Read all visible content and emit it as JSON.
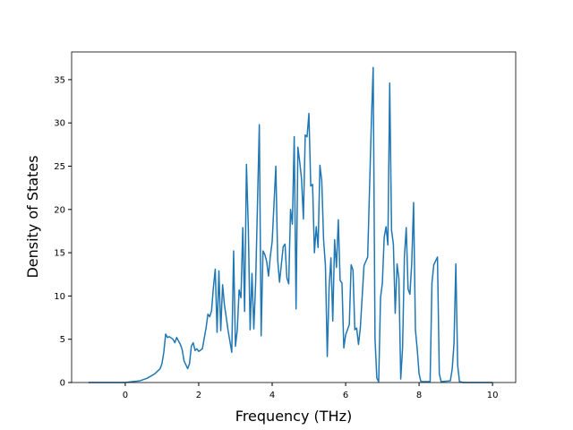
{
  "chart_data": {
    "type": "line",
    "x_label": "Frequency (THz)",
    "y_label": "Density of States",
    "x": [
      -1,
      0,
      0.2,
      0.4,
      0.6,
      0.8,
      0.95,
      1.0,
      1.05,
      1.1,
      1.15,
      1.2,
      1.3,
      1.35,
      1.4,
      1.5,
      1.55,
      1.6,
      1.7,
      1.75,
      1.8,
      1.85,
      1.9,
      1.95,
      2.0,
      2.1,
      2.2,
      2.25,
      2.3,
      2.35,
      2.4,
      2.45,
      2.5,
      2.55,
      2.6,
      2.65,
      2.7,
      2.8,
      2.9,
      2.95,
      3.0,
      3.05,
      3.1,
      3.15,
      3.2,
      3.25,
      3.3,
      3.35,
      3.4,
      3.45,
      3.5,
      3.55,
      3.65,
      3.7,
      3.75,
      3.8,
      3.85,
      3.9,
      3.95,
      4.0,
      4.1,
      4.15,
      4.2,
      4.3,
      4.35,
      4.4,
      4.45,
      4.5,
      4.55,
      4.6,
      4.65,
      4.7,
      4.75,
      4.8,
      4.85,
      4.9,
      4.95,
      5.0,
      5.05,
      5.1,
      5.15,
      5.2,
      5.25,
      5.3,
      5.35,
      5.4,
      5.45,
      5.5,
      5.55,
      5.6,
      5.65,
      5.7,
      5.75,
      5.8,
      5.85,
      5.9,
      5.95,
      6.0,
      6.1,
      6.15,
      6.2,
      6.25,
      6.3,
      6.35,
      6.4,
      6.5,
      6.6,
      6.7,
      6.75,
      6.8,
      6.85,
      6.9,
      6.95,
      7.0,
      7.05,
      7.1,
      7.15,
      7.2,
      7.25,
      7.3,
      7.35,
      7.4,
      7.45,
      7.5,
      7.55,
      7.6,
      7.65,
      7.7,
      7.75,
      7.8,
      7.85,
      7.9,
      7.95,
      8.0,
      8.05,
      8.3,
      8.35,
      8.4,
      8.5,
      8.55,
      8.6,
      8.85,
      8.9,
      8.95,
      9.0,
      9.05,
      9.1,
      9.2,
      10.0
    ],
    "series": [
      {
        "name": "DOS",
        "color": "#1f77b4",
        "values": [
          0,
          0,
          0.1,
          0.2,
          0.5,
          1.0,
          1.6,
          2.2,
          3.5,
          5.6,
          5.2,
          5.3,
          5.0,
          4.6,
          5.2,
          4.4,
          3.8,
          2.5,
          1.6,
          2.2,
          4.2,
          4.6,
          3.7,
          3.9,
          3.6,
          3.9,
          6.3,
          7.9,
          7.6,
          8.3,
          11.0,
          13.1,
          5.8,
          12.9,
          6.0,
          11.3,
          9.0,
          6.0,
          3.5,
          15.2,
          4.2,
          6.1,
          10.7,
          9.8,
          17.9,
          8.2,
          25.2,
          18.0,
          6.1,
          12.6,
          6.2,
          11.5,
          29.8,
          5.4,
          15.2,
          14.8,
          14.0,
          12.3,
          14.6,
          16.3,
          25.0,
          14.2,
          11.6,
          15.7,
          16.0,
          12.1,
          11.4,
          20.0,
          18.3,
          28.4,
          8.5,
          27.2,
          25.5,
          23.5,
          18.9,
          28.6,
          28.4,
          31.1,
          22.7,
          22.9,
          15.0,
          18.0,
          15.6,
          25.1,
          23.3,
          16.5,
          13.5,
          3.0,
          11.0,
          14.4,
          7.1,
          16.5,
          13.3,
          18.8,
          11.8,
          11.5,
          4.0,
          5.5,
          6.7,
          13.6,
          13.0,
          6.1,
          6.3,
          4.4,
          6.3,
          13.5,
          14.5,
          30.0,
          36.4,
          5.0,
          0.5,
          0.1,
          9.8,
          11.5,
          16.8,
          18.0,
          15.9,
          34.6,
          17.6,
          16.0,
          8.0,
          13.7,
          12.0,
          0.4,
          4.0,
          14.5,
          17.9,
          10.8,
          10.2,
          13.8,
          20.8,
          6.1,
          3.8,
          1.0,
          0.1,
          0.1,
          11.5,
          13.6,
          14.5,
          1.0,
          0.1,
          0.2,
          1.5,
          4.5,
          13.7,
          2.0,
          0.1,
          0,
          0
        ]
      }
    ],
    "xlim": [
      -1.46,
      10.63
    ],
    "xticks": [
      0,
      2,
      4,
      6,
      8,
      10
    ],
    "ylim": [
      0,
      38.2
    ],
    "yticks": [
      0,
      5,
      10,
      15,
      20,
      25,
      30,
      35
    ],
    "grid": false,
    "legend": false
  }
}
